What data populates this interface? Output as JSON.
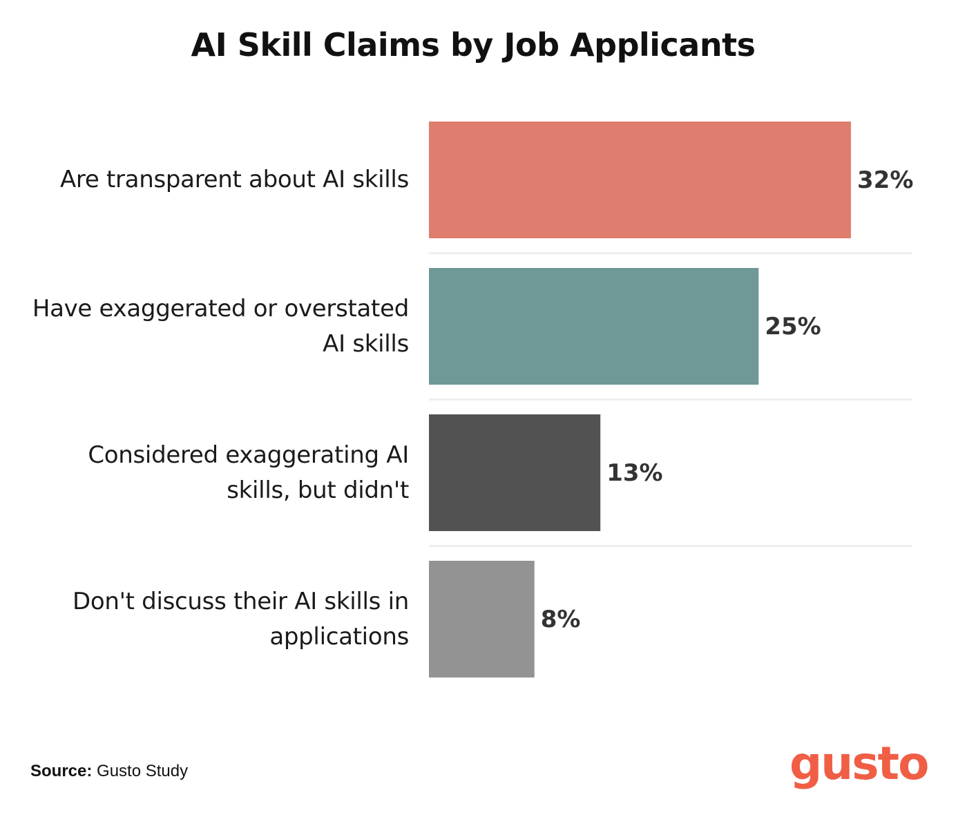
{
  "chart_data": {
    "type": "bar",
    "orientation": "horizontal",
    "title": "AI Skill Claims by Job Applicants",
    "categories": [
      "Are transparent about AI skills",
      "Have exaggerated or overstated AI skills",
      "Considered exaggerating AI skills, but didn't",
      "Don't discuss their AI skills in applications"
    ],
    "category_lines": [
      [
        "Are transparent about AI skills"
      ],
      [
        "Have exaggerated or overstated",
        "AI skills"
      ],
      [
        "Considered exaggerating AI",
        "skills, but didn't"
      ],
      [
        "Don't discuss their AI skills in",
        "applications"
      ]
    ],
    "values": [
      32,
      25,
      13,
      8
    ],
    "value_labels": [
      "32%",
      "25%",
      "13%",
      "8%"
    ],
    "colors": [
      "#df7d6e",
      "#6f9897",
      "#525252",
      "#939393"
    ],
    "xlim": [
      0,
      32
    ],
    "grid": false,
    "legend": "none"
  },
  "source": {
    "label": "Source:",
    "text": "Gusto Study"
  },
  "logo": {
    "text": "gusto",
    "color": "#f05e45"
  }
}
